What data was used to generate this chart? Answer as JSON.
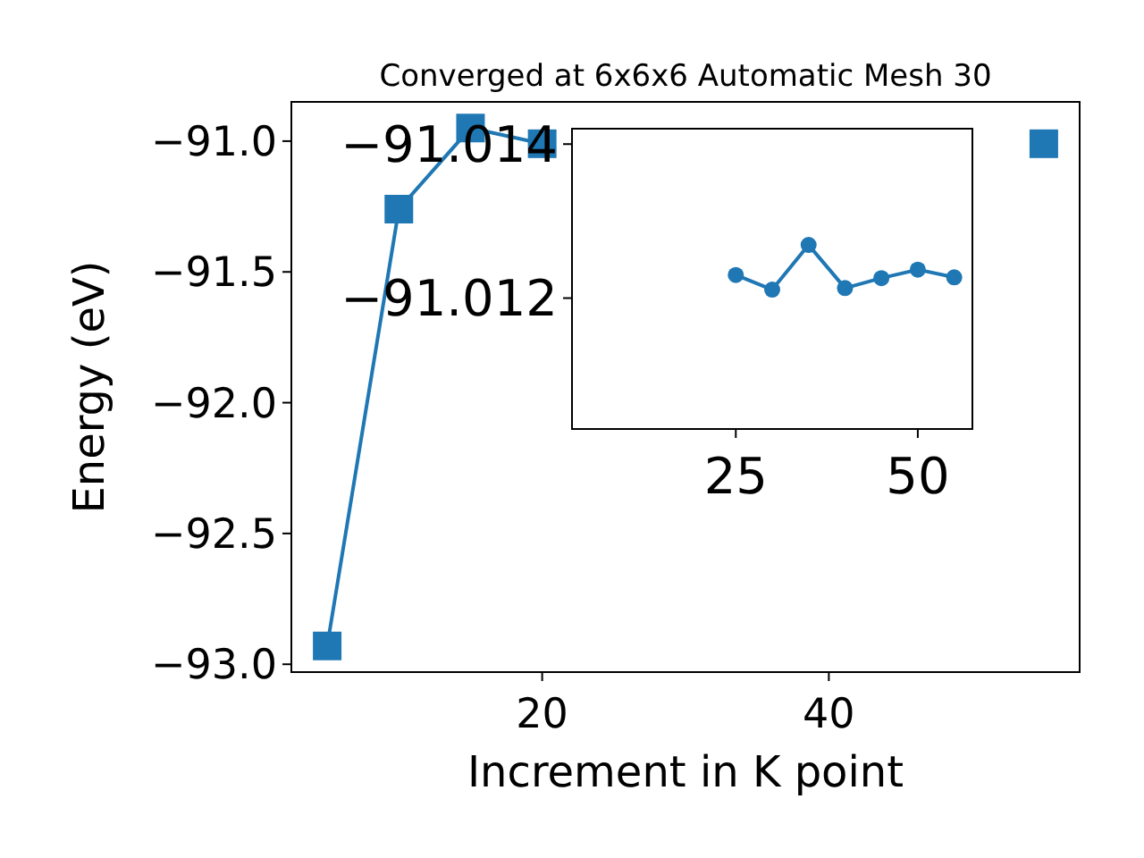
{
  "chart_data": [
    {
      "type": "line",
      "title": "Converged at 6x6x6 Automatic Mesh 30",
      "xlabel": "Increment in K point",
      "ylabel": "Energy (eV)",
      "x": [
        5,
        10,
        15,
        20,
        25,
        30,
        35,
        40,
        45,
        50,
        55
      ],
      "xlim": [
        2.5,
        57.5
      ],
      "xticks": [
        20,
        40
      ],
      "ylim": [
        -93.03,
        -90.85
      ],
      "yticks": [
        {
          "value": -93,
          "label": "−93.0"
        },
        {
          "value": -92.5,
          "label": "−92.5"
        },
        {
          "value": -92,
          "label": "−92.0"
        },
        {
          "value": -91.5,
          "label": "−91.5"
        },
        {
          "value": -91,
          "label": "−91.0"
        }
      ],
      "marker": "square",
      "grid": false,
      "series": [
        {
          "color": "#1f77b4",
          "values": [
            -92.93,
            -91.26,
            -90.95,
            -91.01,
            null,
            null,
            null,
            null,
            null,
            null,
            -91.01
          ]
        }
      ]
    },
    {
      "type": "line",
      "x": [
        25,
        30,
        35,
        40,
        45,
        50,
        55
      ],
      "xlim": [
        2.5,
        57.5
      ],
      "xticks": [
        25,
        50
      ],
      "ylim": [
        -91.0103,
        -91.0142
      ],
      "yticks": [
        {
          "value": -91.014,
          "label": "−91.014"
        },
        {
          "value": -91.012,
          "label": "−91.012"
        }
      ],
      "marker": "circle",
      "grid": false,
      "series": [
        {
          "color": "#1f77b4",
          "values": [
            -91.0123,
            -91.01211,
            -91.01269,
            -91.01213,
            -91.01226,
            -91.01237,
            -91.01227
          ]
        }
      ]
    }
  ]
}
